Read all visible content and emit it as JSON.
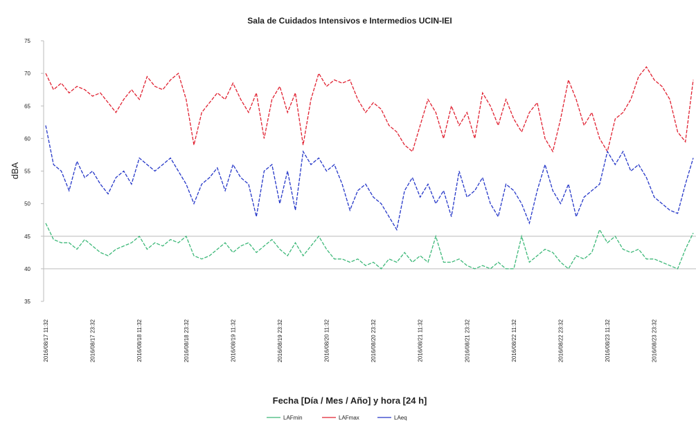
{
  "chart_data": {
    "type": "line",
    "title": "Sala de Cuidados Intensivos e Intermedios UCIN-IEI",
    "x_label": "Fecha [Día / Mes / Año] y hora [24 h]",
    "y_label": "dBA",
    "ylim": [
      35,
      75
    ],
    "yticks": [
      35,
      40,
      45,
      50,
      55,
      60,
      65,
      70,
      75
    ],
    "reference_lines": [
      45,
      40
    ],
    "categories": [
      "2016/08/17 11:32",
      null,
      null,
      null,
      null,
      null,
      "2016/08/17 23:32",
      null,
      null,
      null,
      null,
      null,
      "2016/08/18 11:32",
      null,
      null,
      null,
      null,
      null,
      "2016/08/18 23:32",
      null,
      null,
      null,
      null,
      null,
      "2016/08/19 11:32",
      null,
      null,
      null,
      null,
      null,
      "2016/08/19 23:32",
      null,
      null,
      null,
      null,
      null,
      "2016/08/20 11:32",
      null,
      null,
      null,
      null,
      null,
      "2016/08/20 23:32",
      null,
      null,
      null,
      null,
      null,
      "2016/08/21 11:32",
      null,
      null,
      null,
      null,
      null,
      "2016/08/21 23:32",
      null,
      null,
      null,
      null,
      null,
      "2016/08/22 11:32",
      null,
      null,
      null,
      null,
      null,
      "2016/08/22 23:32",
      null,
      null,
      null,
      null,
      null,
      "2016/08/23 11:32",
      null,
      null,
      null,
      null,
      null,
      "2016/08/23 23:32",
      null,
      null,
      null,
      null,
      null
    ],
    "series": [
      {
        "name": "LAFmin",
        "color": "#3cb878",
        "values": [
          47,
          44.5,
          44,
          44,
          43,
          44.5,
          43.5,
          42.5,
          42,
          43,
          43.5,
          44,
          45,
          43,
          44,
          43.5,
          44.5,
          44,
          45,
          42,
          41.5,
          42,
          43,
          44,
          42.5,
          43.5,
          44,
          42.5,
          43.5,
          44.5,
          43,
          42,
          44,
          42,
          43.5,
          45,
          43,
          41.5,
          41.5,
          41,
          41.5,
          40.5,
          41,
          40,
          41.5,
          41,
          42.5,
          41,
          42,
          41,
          45,
          41,
          41,
          41.5,
          40.5,
          40,
          40.5,
          40,
          41,
          40,
          40,
          45,
          41,
          42,
          43,
          42.5,
          41,
          40,
          42,
          41.5,
          42.5,
          46,
          44,
          45,
          43,
          42.5,
          43,
          41.5,
          41.5,
          41,
          40.5,
          40,
          43,
          45.5
        ]
      },
      {
        "name": "LAFmax",
        "color": "#e02030",
        "values": [
          70,
          67.5,
          68.5,
          67,
          68,
          67.5,
          66.5,
          67,
          65.5,
          64,
          66,
          67.5,
          66,
          69.5,
          68,
          67.5,
          69,
          70,
          66,
          59,
          64,
          65.5,
          67,
          66,
          68.5,
          66,
          64,
          67,
          60,
          66,
          68,
          64,
          67,
          59,
          66,
          70,
          68,
          69,
          68.5,
          69,
          66,
          64,
          65.5,
          64.5,
          62,
          61,
          59,
          58,
          62,
          66,
          64,
          60,
          65,
          62,
          64,
          60,
          67,
          65,
          62,
          66,
          63,
          61,
          64,
          65.5,
          60,
          58,
          63,
          69,
          66,
          62,
          64,
          60,
          58,
          63,
          64,
          66,
          69.5,
          71,
          69,
          68,
          66,
          61,
          59.5,
          69
        ]
      },
      {
        "name": "LAeq",
        "color": "#2436c8",
        "values": [
          62,
          56,
          55,
          52,
          56.5,
          54,
          55,
          53,
          51.5,
          54,
          55,
          53,
          57,
          56,
          55,
          56,
          57,
          55,
          53,
          50,
          53,
          54,
          55.5,
          52,
          56,
          54,
          53,
          48,
          55,
          56,
          50,
          55,
          49,
          58,
          56,
          57,
          55,
          56,
          53,
          49,
          52,
          53,
          51,
          50,
          48,
          46,
          52,
          54,
          51,
          53,
          50,
          52,
          48,
          55,
          51,
          52,
          54,
          50,
          48,
          53,
          52,
          50,
          47,
          52,
          56,
          52,
          50,
          53,
          48,
          51,
          52,
          53,
          58,
          56,
          58,
          55,
          56,
          54,
          51,
          50,
          49,
          48.5,
          53,
          57
        ]
      }
    ]
  }
}
